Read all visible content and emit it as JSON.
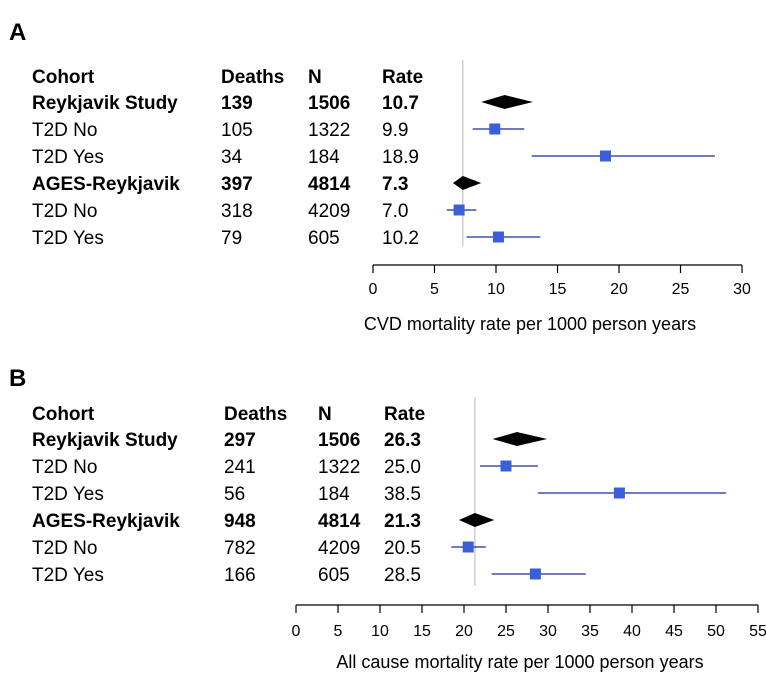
{
  "chart_data": [
    {
      "type": "forest",
      "panel": "A",
      "columns": [
        "Cohort",
        "Deaths",
        "N",
        "Rate"
      ],
      "rows": [
        {
          "cohort": "Reykjavik Study",
          "deaths": "139",
          "n": "1506",
          "rate": "10.7",
          "summary": true,
          "estimate": 10.7,
          "lower": 8.8,
          "upper": 13.0
        },
        {
          "cohort": "T2D No",
          "deaths": "105",
          "n": "1322",
          "rate": "9.9",
          "summary": false,
          "estimate": 9.9,
          "lower": 8.1,
          "upper": 12.3
        },
        {
          "cohort": "T2D Yes",
          "deaths": "34",
          "n": "184",
          "rate": "18.9",
          "summary": false,
          "estimate": 18.9,
          "lower": 12.9,
          "upper": 27.8
        },
        {
          "cohort": "AGES-Reykjavik",
          "deaths": "397",
          "n": "4814",
          "rate": "7.3",
          "summary": true,
          "estimate": 7.3,
          "lower": 6.5,
          "upper": 8.8
        },
        {
          "cohort": "T2D No",
          "deaths": "318",
          "n": "4209",
          "rate": "7.0",
          "summary": false,
          "estimate": 7.0,
          "lower": 6.0,
          "upper": 8.4
        },
        {
          "cohort": "T2D Yes",
          "deaths": "79",
          "n": "605",
          "rate": "10.2",
          "summary": false,
          "estimate": 10.2,
          "lower": 7.6,
          "upper": 13.6
        }
      ],
      "reference_line": 7.3,
      "xlim": [
        0,
        30
      ],
      "xticks": [
        0,
        5,
        10,
        15,
        20,
        25,
        30
      ],
      "xlabel": "CVD mortality rate per 1000 person years",
      "marker_color": "#3b5fd9",
      "line_color": "#1c2a9e"
    },
    {
      "type": "forest",
      "panel": "B",
      "columns": [
        "Cohort",
        "Deaths",
        "N",
        "Rate"
      ],
      "rows": [
        {
          "cohort": "Reykjavik Study",
          "deaths": "297",
          "n": "1506",
          "rate": "26.3",
          "summary": true,
          "estimate": 26.3,
          "lower": 23.4,
          "upper": 29.9
        },
        {
          "cohort": "T2D No",
          "deaths": "241",
          "n": "1322",
          "rate": "25.0",
          "summary": false,
          "estimate": 25.0,
          "lower": 21.9,
          "upper": 28.8
        },
        {
          "cohort": "T2D Yes",
          "deaths": "56",
          "n": "184",
          "rate": "38.5",
          "summary": false,
          "estimate": 38.5,
          "lower": 28.8,
          "upper": 51.2
        },
        {
          "cohort": "AGES-Reykjavik",
          "deaths": "948",
          "n": "4814",
          "rate": "21.3",
          "summary": true,
          "estimate": 21.3,
          "lower": 19.4,
          "upper": 23.6
        },
        {
          "cohort": "T2D No",
          "deaths": "782",
          "n": "4209",
          "rate": "20.5",
          "summary": false,
          "estimate": 20.5,
          "lower": 18.5,
          "upper": 22.6
        },
        {
          "cohort": "T2D Yes",
          "deaths": "166",
          "n": "605",
          "rate": "28.5",
          "summary": false,
          "estimate": 28.5,
          "lower": 23.3,
          "upper": 34.5
        }
      ],
      "reference_line": 21.3,
      "xlim": [
        0,
        55
      ],
      "xticks": [
        0,
        5,
        10,
        15,
        20,
        25,
        30,
        35,
        40,
        45,
        50,
        55
      ],
      "xlabel": "All cause mortality rate per 1000 person years",
      "marker_color": "#3b5fd9",
      "line_color": "#1c2a9e"
    }
  ]
}
